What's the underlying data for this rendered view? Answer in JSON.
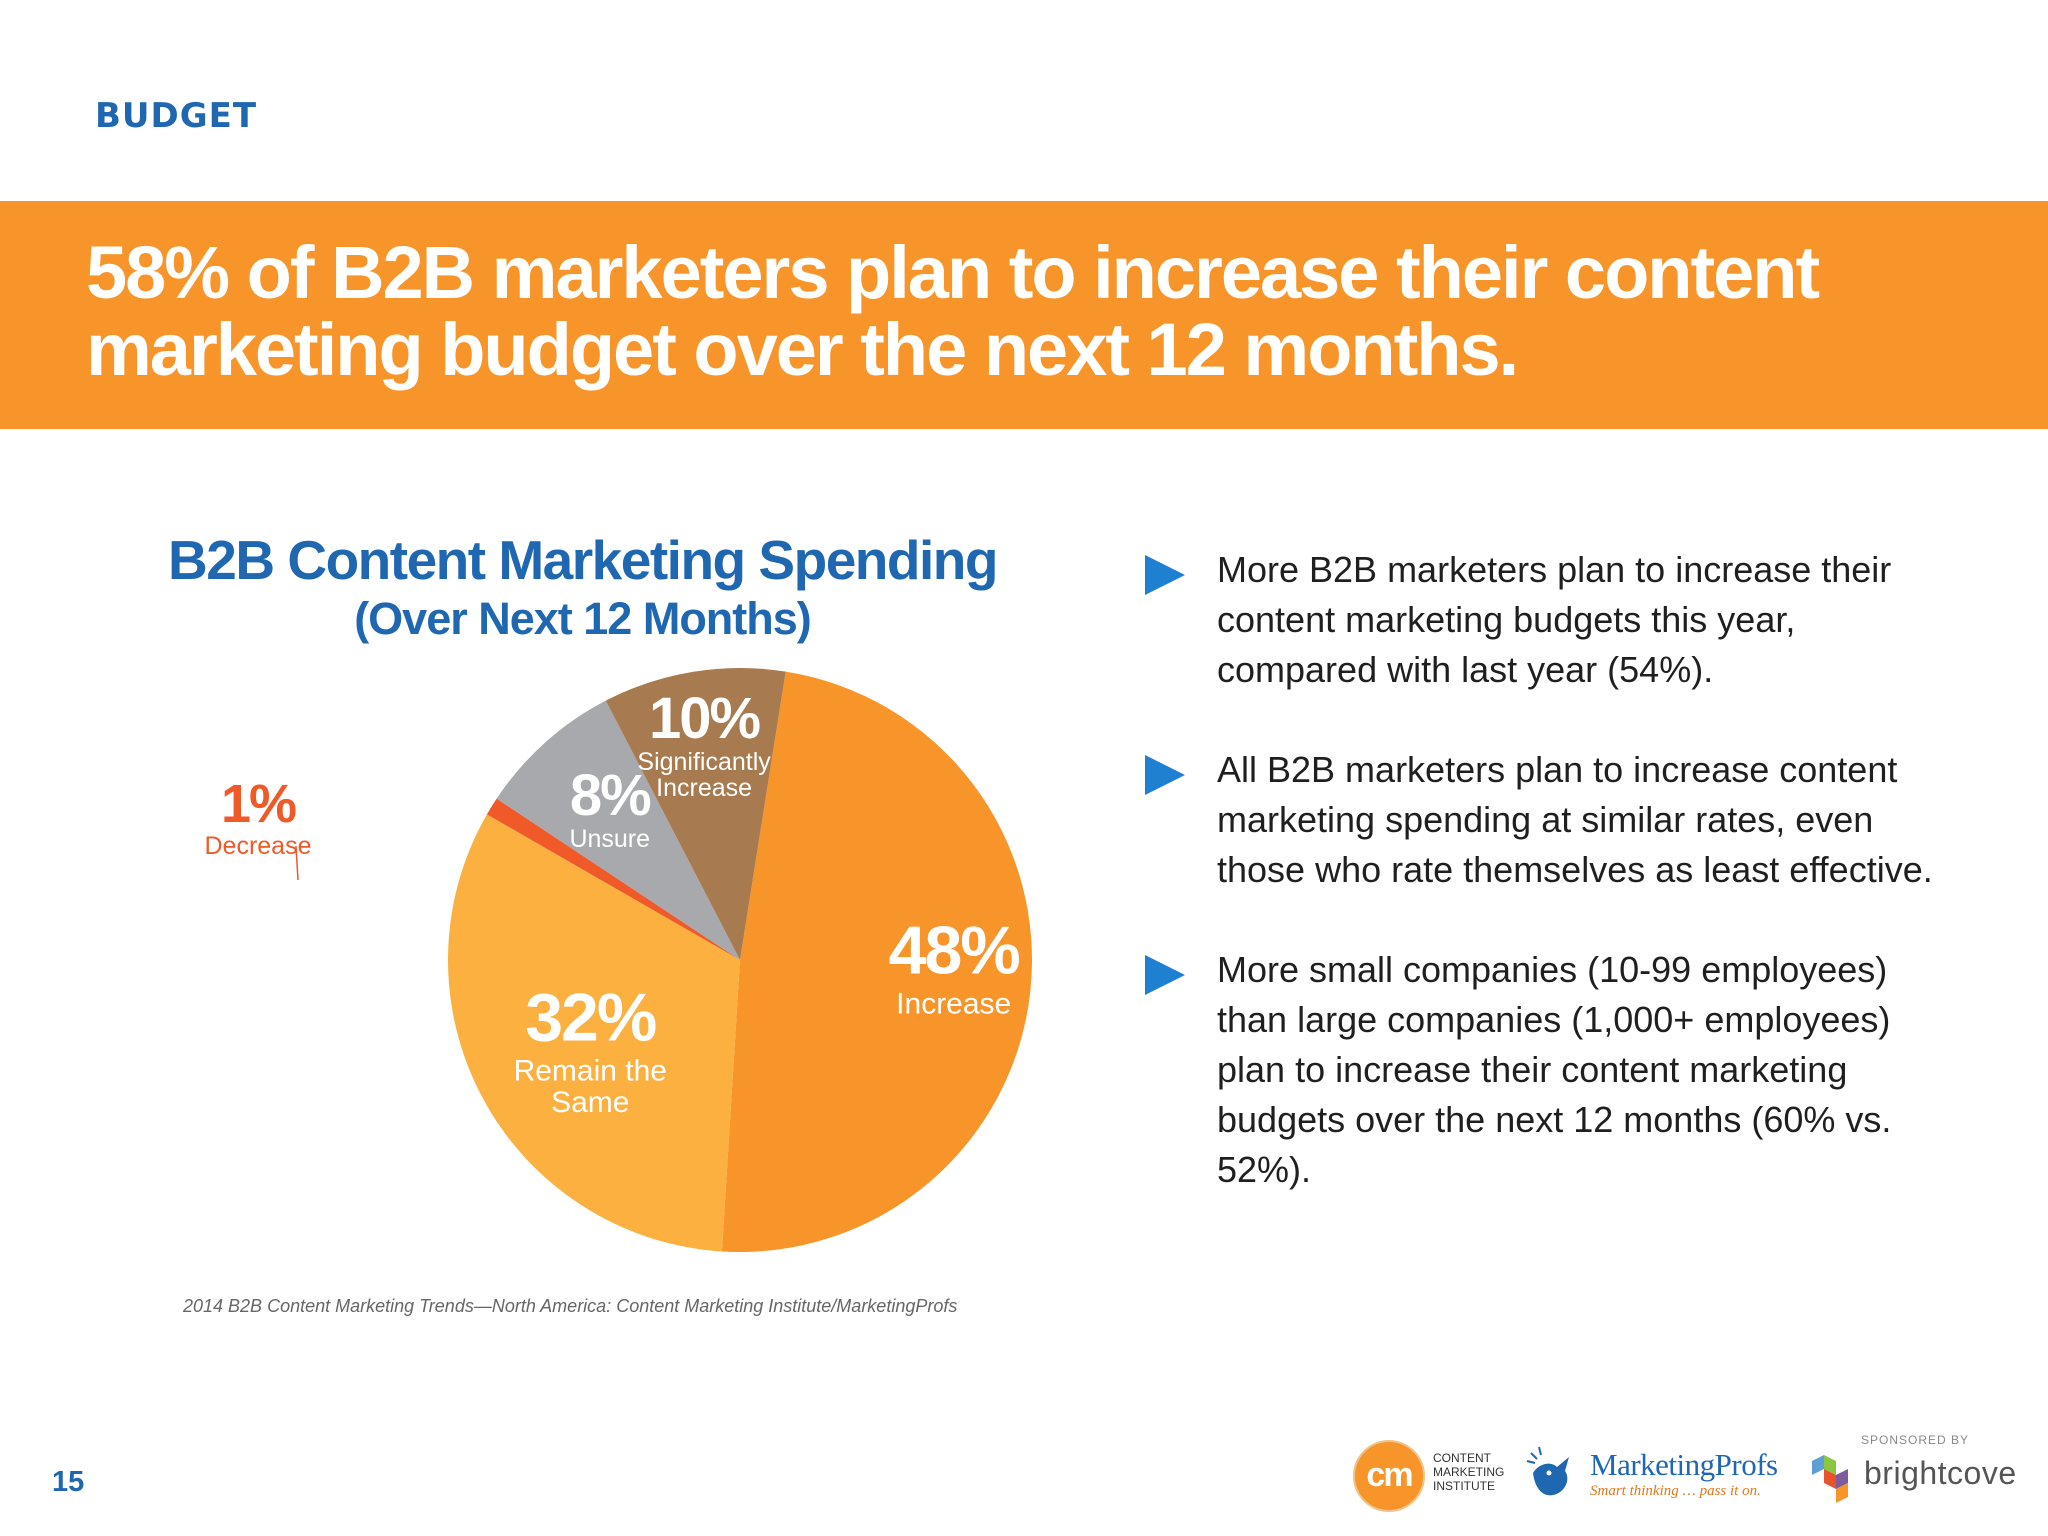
{
  "section_label": "BUDGET",
  "headline_line1": "58% of B2B marketers plan to increase their content",
  "headline_line2": "marketing budget over the next 12 months.",
  "chart_data": {
    "type": "pie",
    "title": "B2B Content Marketing Spending",
    "subtitle": "(Over Next 12 Months)",
    "slices": [
      {
        "name": "Increase",
        "value": 48,
        "label": "48%",
        "color": "#f7952a"
      },
      {
        "name": "Remain the Same",
        "value": 32,
        "label": "32%",
        "color": "#fbb040"
      },
      {
        "name": "Decrease",
        "value": 1,
        "label": "1%",
        "color": "#ef5a28"
      },
      {
        "name": "Unsure",
        "value": 8,
        "label": "8%",
        "color": "#a7a9ac"
      },
      {
        "name": "Significantly Increase",
        "value": 10,
        "label": "10%",
        "color": "#a87a4f"
      }
    ],
    "source": "2014 B2B Content Marketing Trends—North America: Content Marketing Institute/MarketingProfs"
  },
  "bullets": [
    "More B2B marketers plan to increase their content marketing budgets this year, compared with last year (54%).",
    "All B2B marketers plan to increase content marketing spending at similar rates, even those who rate themselves as least effective.",
    "More small companies (10-99 employees) than large companies (1,000+ employees) plan to increase their content marketing budgets over the next 12 months (60% vs. 52%)."
  ],
  "page_number": "15",
  "footer": {
    "cmi_logo": "cm",
    "cmi_text": "CONTENT\nMARKETING\nINSTITUTE",
    "marketingprofs_name": "MarketingProfs",
    "marketingprofs_tagline": "Smart thinking … pass it on.",
    "sponsored_by": "SPONSORED BY",
    "brightcove_name": "brightcove",
    "icons": [
      "cmi-logo-icon",
      "marketingprofs-bird-icon",
      "brightcove-logo-icon"
    ]
  }
}
